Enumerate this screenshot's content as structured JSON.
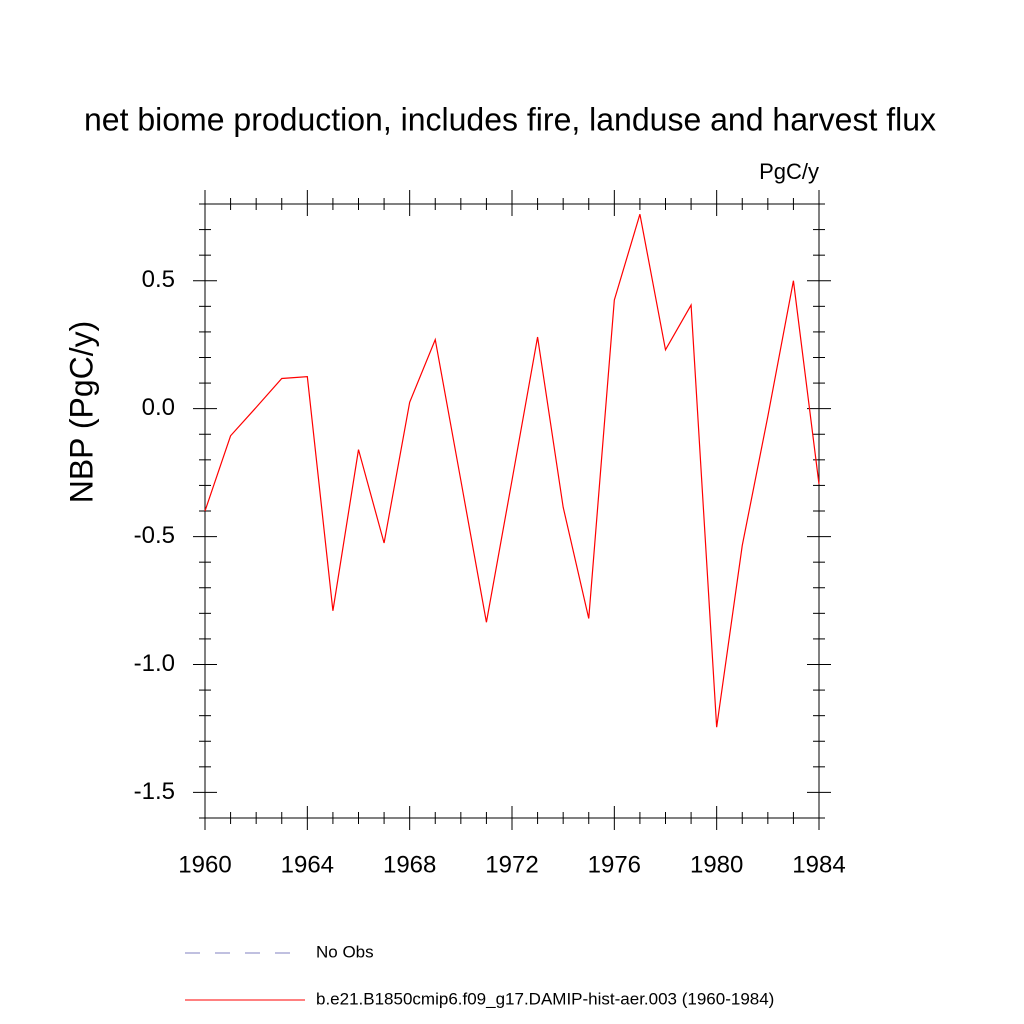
{
  "chart_data": {
    "type": "line",
    "title": "net biome production, includes fire, landuse and harvest flux",
    "units": "PgC/y",
    "y_label": "NBP  (PgC/y)",
    "x": [
      1960,
      1961,
      1962,
      1963,
      1964,
      1965,
      1966,
      1967,
      1968,
      1969,
      1970,
      1971,
      1972,
      1973,
      1974,
      1975,
      1976,
      1977,
      1978,
      1979,
      1980,
      1981,
      1982,
      1983,
      1984
    ],
    "series": [
      {
        "name": "b.e21.B1850cmip6.f09_g17.DAMIP-hist-aer.003 (1960-1984)",
        "color": "#ff0000",
        "values": [
          -0.4,
          -0.106,
          0.005,
          0.118,
          0.125,
          -0.79,
          -0.16,
          -0.525,
          0.025,
          0.27,
          -0.28,
          -0.835,
          -0.28,
          0.28,
          -0.385,
          -0.82,
          0.425,
          0.76,
          0.23,
          0.405,
          -1.245,
          -0.535,
          -0.03,
          0.5,
          -0.295
        ]
      }
    ],
    "obs_legend": {
      "name": "No Obs",
      "color": "#8080c0",
      "dashed": true
    },
    "xlim": [
      1960,
      1984
    ],
    "xticks": [
      1960,
      1964,
      1968,
      1972,
      1976,
      1980,
      1984
    ],
    "xminorticks": [
      1961,
      1962,
      1963,
      1965,
      1966,
      1967,
      1969,
      1970,
      1971,
      1973,
      1974,
      1975,
      1977,
      1978,
      1979,
      1981,
      1982,
      1983
    ],
    "ylim": [
      -1.6,
      0.8
    ],
    "yticks": [
      {
        "value": -1.5,
        "label": "-1.5"
      },
      {
        "value": -1.0,
        "label": "-1.0"
      },
      -0.5,
      {
        "value": 0,
        "label": "0.0"
      },
      0.5
    ],
    "yminorticks": [
      -1.6,
      -1.4,
      -1.3,
      -1.2,
      -1.1,
      -0.9,
      -0.8,
      -0.7,
      -0.6,
      -0.4,
      -0.3,
      -0.2,
      -0.1,
      0.1,
      0.2,
      0.3,
      0.4,
      0.6,
      0.7,
      0.8
    ]
  }
}
